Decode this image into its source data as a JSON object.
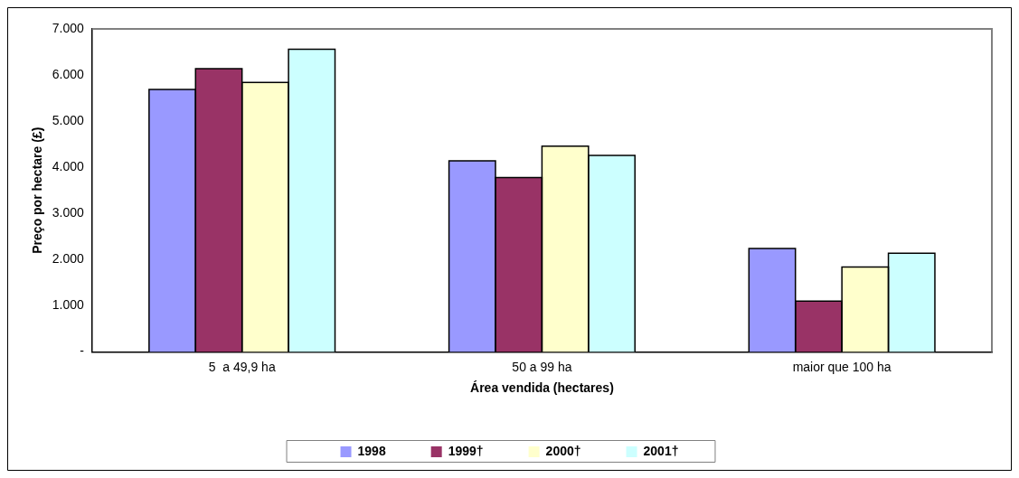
{
  "chart_data": {
    "type": "bar",
    "xlabel": "Área vendida (hectares)",
    "ylabel": "Preço por hectare (£)",
    "categories": [
      "5  a 49,9 ha",
      "50 a 99 ha",
      "maior que 100 ha"
    ],
    "series": [
      {
        "name": "1998",
        "color": "#9999ff",
        "values": [
          5690,
          4140,
          2240
        ]
      },
      {
        "name": "1999†",
        "color": "#993366",
        "values": [
          6140,
          3780,
          1100
        ]
      },
      {
        "name": "2000†",
        "color": "#ffffcc",
        "values": [
          5840,
          4460,
          1840
        ]
      },
      {
        "name": "2001†",
        "color": "#ccffff",
        "values": [
          6560,
          4260,
          2140
        ]
      }
    ],
    "ylim": [
      0,
      7000
    ],
    "yticks": [
      {
        "value": 0,
        "label": "-"
      },
      {
        "value": 1000,
        "label": "1.000"
      },
      {
        "value": 2000,
        "label": "2.000"
      },
      {
        "value": 3000,
        "label": "3.000"
      },
      {
        "value": 4000,
        "label": "4.000"
      },
      {
        "value": 5000,
        "label": "5.000"
      },
      {
        "value": 6000,
        "label": "6.000"
      },
      {
        "value": 7000,
        "label": "7.000"
      }
    ],
    "grid": false,
    "legend": "bottom"
  }
}
